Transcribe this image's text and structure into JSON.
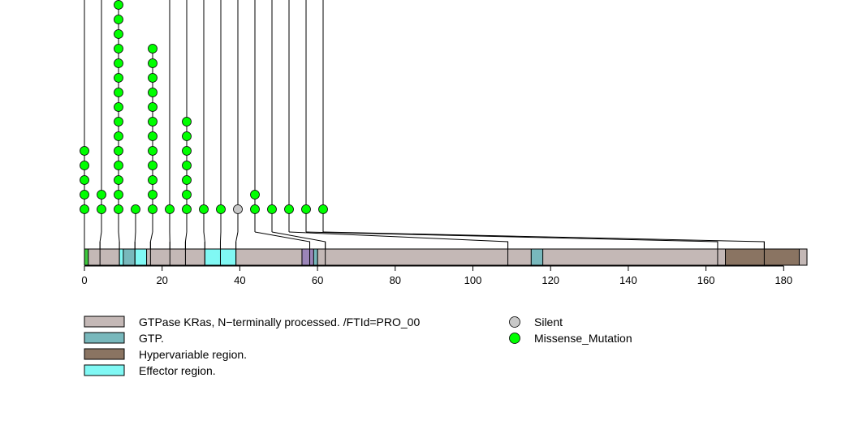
{
  "chart_data": {
    "type": "lollipop",
    "xlim": [
      0,
      186
    ],
    "x_ticks": [
      0,
      20,
      40,
      60,
      80,
      100,
      120,
      140,
      160,
      180
    ],
    "protein_length": 186,
    "domains": [
      {
        "label": "GTPase KRas, N−terminally processed. /FTId=PRO_00",
        "start": 1,
        "end": 186,
        "color": "#c4b8b6"
      },
      {
        "label": "GTP.",
        "start": 115,
        "end": 118,
        "color": "#78b8bc"
      },
      {
        "label": "Hypervariable region.",
        "start": 165,
        "end": 184,
        "color": "#8a7462"
      },
      {
        "label": "Effector region.",
        "start": 31,
        "end": 39,
        "color": "#80f8f4"
      }
    ],
    "extra_segments": [
      {
        "start": 0,
        "end": 1,
        "color": "#3ec93e"
      },
      {
        "start": 9,
        "end": 16,
        "color": "#80f8f4"
      },
      {
        "start": 10,
        "end": 13,
        "color": "#78b8bc"
      },
      {
        "start": 56,
        "end": 60,
        "color": "#9b85b8"
      },
      {
        "start": 59,
        "end": 60,
        "color": "#78b8bc"
      }
    ],
    "mutations": [
      {
        "position": 0,
        "count": 5,
        "type": "Missense_Mutation",
        "extends_beyond": true
      },
      {
        "position": 4,
        "count": 2,
        "type": "Missense_Mutation",
        "extends_beyond": true
      },
      {
        "position": 9,
        "count": 15,
        "type": "Missense_Mutation",
        "extends_beyond": true
      },
      {
        "position": 13,
        "count": 1,
        "type": "Missense_Mutation",
        "extends_beyond": false
      },
      {
        "position": 17,
        "count": 12,
        "type": "Missense_Mutation",
        "extends_beyond": false
      },
      {
        "position": 22,
        "count": 1,
        "type": "Missense_Mutation",
        "extends_beyond": true
      },
      {
        "position": 26,
        "count": 7,
        "type": "Missense_Mutation",
        "extends_beyond": true
      },
      {
        "position": 31,
        "count": 1,
        "type": "Missense_Mutation",
        "extends_beyond": true
      },
      {
        "position": 35,
        "count": 1,
        "type": "Missense_Mutation",
        "extends_beyond": true
      },
      {
        "position": 39,
        "count": 1,
        "type": "Silent",
        "extends_beyond": true
      },
      {
        "position": 58,
        "count": 2,
        "type": "Missense_Mutation",
        "extends_beyond": true
      },
      {
        "position": 62,
        "count": 1,
        "type": "Missense_Mutation",
        "extends_beyond": true
      },
      {
        "position": 109,
        "count": 1,
        "type": "Missense_Mutation",
        "extends_beyond": true
      },
      {
        "position": 163,
        "count": 1,
        "type": "Missense_Mutation",
        "extends_beyond": true
      },
      {
        "position": 175,
        "count": 1,
        "type": "Missense_Mutation",
        "extends_beyond": true
      }
    ],
    "legend": {
      "domains": [
        {
          "label": "GTPase KRas, N−terminally processed. /FTId=PRO_00",
          "color": "#c4b8b6"
        },
        {
          "label": "GTP.",
          "color": "#78b8bc"
        },
        {
          "label": "Hypervariable region.",
          "color": "#8a7462"
        },
        {
          "label": "Effector region.",
          "color": "#80f8f4"
        }
      ],
      "mutation_types": [
        {
          "label": "Silent",
          "color": "#c8c8c8"
        },
        {
          "label": "Missense_Mutation",
          "color": "#00ff00"
        }
      ]
    }
  }
}
